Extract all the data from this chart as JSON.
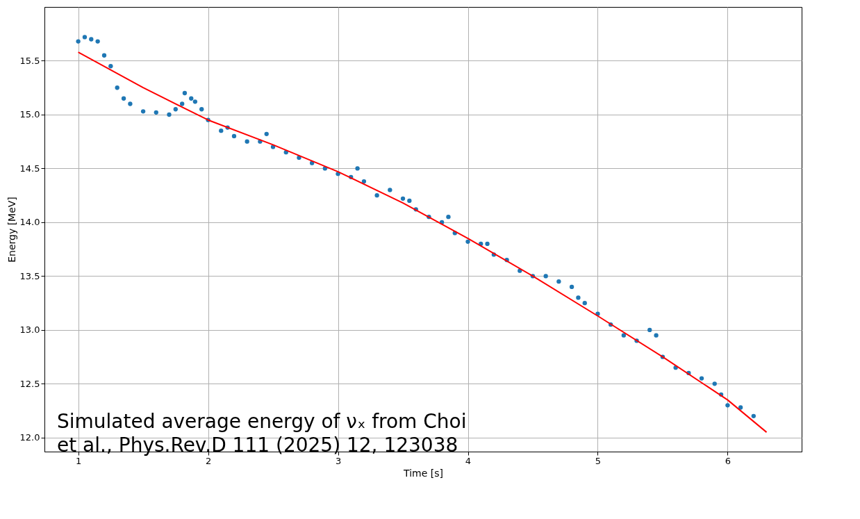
{
  "chart_data": {
    "type": "scatter",
    "xlabel": "Time [s]",
    "ylabel": "Energy [MeV]",
    "xlim": [
      0.74,
      6.57
    ],
    "ylim": [
      11.87,
      16.0
    ],
    "xticks": [
      1,
      2,
      3,
      4,
      5,
      6
    ],
    "yticks": [
      {
        "value": 12,
        "label": "12.0"
      },
      {
        "value": 12.5,
        "label": "12.5"
      },
      {
        "value": 13,
        "label": "13.0"
      },
      {
        "value": 13.5,
        "label": "13.5"
      },
      {
        "value": 14,
        "label": "14.0"
      },
      {
        "value": 14.5,
        "label": "14.5"
      },
      {
        "value": 15,
        "label": "15.0"
      },
      {
        "value": 15.5,
        "label": "15.5"
      }
    ],
    "grid": true,
    "annotations": [
      "Simulated average energy of νₓ from Choi\net al., Phys.Rev.D 111 (2025) 12, 123038"
    ],
    "series": [
      {
        "color": "#1f77b4",
        "marker": "circle",
        "x": [
          1.0,
          1.05,
          1.1,
          1.15,
          1.2,
          1.25,
          1.3,
          1.35,
          1.4,
          1.5,
          1.6,
          1.7,
          1.75,
          1.8,
          1.82,
          1.87,
          1.9,
          1.95,
          2.0,
          2.1,
          2.15,
          2.2,
          2.3,
          2.4,
          2.45,
          2.5,
          2.6,
          2.7,
          2.8,
          2.9,
          3.0,
          3.1,
          3.15,
          3.2,
          3.3,
          3.4,
          3.5,
          3.55,
          3.6,
          3.7,
          3.8,
          3.85,
          3.9,
          4.0,
          4.1,
          4.15,
          4.2,
          4.3,
          4.4,
          4.5,
          4.6,
          4.7,
          4.8,
          4.85,
          4.9,
          5.0,
          5.1,
          5.2,
          5.3,
          5.4,
          5.45,
          5.5,
          5.6,
          5.7,
          5.8,
          5.9,
          5.95,
          6.0,
          6.1,
          6.2
        ],
        "values": [
          15.68,
          15.72,
          15.7,
          15.68,
          15.55,
          15.45,
          15.25,
          15.15,
          15.1,
          15.03,
          15.02,
          15.0,
          15.05,
          15.1,
          15.2,
          15.15,
          15.12,
          15.05,
          14.95,
          14.85,
          14.88,
          14.8,
          14.75,
          14.75,
          14.82,
          14.7,
          14.65,
          14.6,
          14.55,
          14.5,
          14.45,
          14.42,
          14.5,
          14.38,
          14.25,
          14.3,
          14.22,
          14.2,
          14.12,
          14.05,
          14.0,
          14.05,
          13.9,
          13.82,
          13.8,
          13.8,
          13.7,
          13.65,
          13.55,
          13.5,
          13.5,
          13.45,
          13.4,
          13.3,
          13.25,
          13.15,
          13.05,
          12.95,
          12.9,
          13.0,
          12.95,
          12.75,
          12.65,
          12.6,
          12.55,
          12.5,
          12.4,
          12.3,
          12.28,
          12.2
        ]
      },
      {
        "type": "line",
        "color": "#ff0000",
        "marker": "none",
        "x": [
          1.0,
          1.5,
          2.0,
          2.5,
          3.0,
          3.5,
          4.0,
          4.5,
          5.0,
          5.5,
          6.0,
          6.3
        ],
        "values": [
          15.58,
          15.25,
          14.95,
          14.72,
          14.47,
          14.18,
          13.85,
          13.5,
          13.13,
          12.75,
          12.35,
          12.05
        ]
      }
    ]
  }
}
